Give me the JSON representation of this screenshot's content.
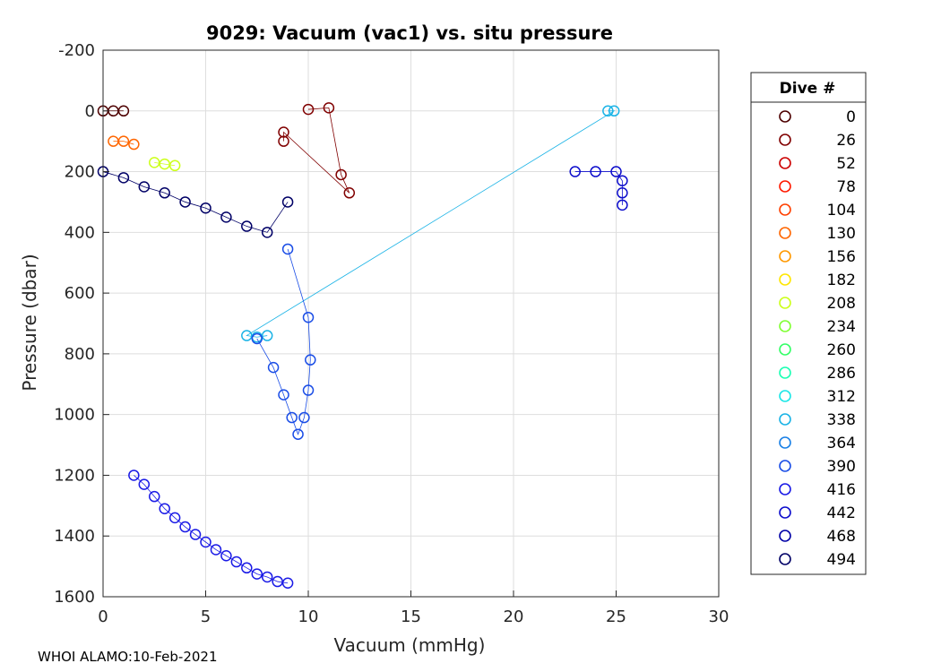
{
  "chart_data": {
    "type": "scatter",
    "title": "9029: Vacuum (vac1) vs. situ pressure",
    "xlabel": "Vacuum (mmHg)",
    "ylabel": "Pressure (dbar)",
    "xlim": [
      0,
      30
    ],
    "ylim": [
      -200,
      1600
    ],
    "y_reversed": true,
    "grid": true,
    "marker": "open-circle",
    "x_ticks": [
      "0",
      "5",
      "10",
      "15",
      "20",
      "25",
      "30"
    ],
    "y_ticks": [
      "-200",
      "0",
      "200",
      "400",
      "600",
      "800",
      "1000",
      "1200",
      "1400",
      "1600"
    ],
    "legend": {
      "title": "Dive #",
      "placement": "outside-right",
      "entries": [
        {
          "label": "0",
          "color": "#4d0000"
        },
        {
          "label": "26",
          "color": "#800000"
        },
        {
          "label": "52",
          "color": "#cc0000"
        },
        {
          "label": "78",
          "color": "#ff1a00"
        },
        {
          "label": "104",
          "color": "#ff4000"
        },
        {
          "label": "130",
          "color": "#ff6600"
        },
        {
          "label": "156",
          "color": "#ff9900"
        },
        {
          "label": "182",
          "color": "#ffe600"
        },
        {
          "label": "208",
          "color": "#ccff1a"
        },
        {
          "label": "234",
          "color": "#80ff33"
        },
        {
          "label": "260",
          "color": "#33ff66"
        },
        {
          "label": "286",
          "color": "#1affb3"
        },
        {
          "label": "312",
          "color": "#1ae6e6"
        },
        {
          "label": "338",
          "color": "#1ab3e6"
        },
        {
          "label": "364",
          "color": "#1a80e6"
        },
        {
          "label": "390",
          "color": "#1a4de6"
        },
        {
          "label": "416",
          "color": "#1a1ae6"
        },
        {
          "label": "442",
          "color": "#0d0dcc"
        },
        {
          "label": "468",
          "color": "#0000a6"
        },
        {
          "label": "494",
          "color": "#000066"
        }
      ]
    },
    "series": [
      {
        "color": "#4d0000",
        "points": [
          [
            0.0,
            0
          ],
          [
            0.5,
            0
          ],
          [
            1.0,
            0
          ]
        ]
      },
      {
        "color": "#800000",
        "points": [
          [
            10.0,
            -5
          ],
          [
            11.0,
            -10
          ],
          [
            11.6,
            210
          ],
          [
            12.0,
            270
          ],
          [
            8.8,
            70
          ],
          [
            8.8,
            100
          ]
        ]
      },
      {
        "color": "#ff6600",
        "points": [
          [
            0.5,
            100
          ],
          [
            1.0,
            100
          ],
          [
            1.5,
            110
          ]
        ]
      },
      {
        "color": "#ccff1a",
        "points": [
          [
            2.5,
            170
          ],
          [
            3.0,
            175
          ],
          [
            3.5,
            180
          ]
        ]
      },
      {
        "color": "#1ab3e6",
        "points": [
          [
            24.6,
            0
          ],
          [
            24.9,
            0
          ],
          [
            7.0,
            740
          ],
          [
            7.5,
            745
          ],
          [
            8.0,
            740
          ]
        ]
      },
      {
        "color": "#1a4de6",
        "points": [
          [
            9.0,
            455
          ],
          [
            10.0,
            680
          ],
          [
            10.1,
            820
          ],
          [
            10.0,
            920
          ],
          [
            9.8,
            1010
          ],
          [
            9.5,
            1065
          ],
          [
            9.2,
            1010
          ],
          [
            8.8,
            935
          ],
          [
            8.3,
            845
          ],
          [
            7.5,
            750
          ]
        ]
      },
      {
        "color": "#1a1ae6",
        "points": [
          [
            1.5,
            1200
          ],
          [
            2.0,
            1230
          ],
          [
            2.5,
            1270
          ],
          [
            3.0,
            1310
          ],
          [
            3.5,
            1340
          ],
          [
            4.0,
            1370
          ],
          [
            4.5,
            1395
          ],
          [
            5.0,
            1420
          ],
          [
            5.5,
            1445
          ],
          [
            6.0,
            1465
          ],
          [
            6.5,
            1485
          ],
          [
            7.0,
            1505
          ],
          [
            7.5,
            1525
          ],
          [
            8.0,
            1535
          ],
          [
            8.5,
            1550
          ],
          [
            9.0,
            1555
          ]
        ]
      },
      {
        "color": "#0d0dcc",
        "points": [
          [
            23.0,
            200
          ],
          [
            24.0,
            200
          ],
          [
            25.0,
            200
          ],
          [
            25.3,
            230
          ],
          [
            25.3,
            270
          ],
          [
            25.3,
            310
          ]
        ]
      },
      {
        "color": "#000066",
        "points": [
          [
            0.0,
            200
          ],
          [
            1.0,
            220
          ],
          [
            2.0,
            250
          ],
          [
            3.0,
            270
          ],
          [
            4.0,
            300
          ],
          [
            5.0,
            320
          ],
          [
            6.0,
            350
          ],
          [
            7.0,
            380
          ],
          [
            8.0,
            400
          ],
          [
            9.0,
            300
          ]
        ]
      }
    ]
  },
  "footer": {
    "text": "WHOI ALAMO:10-Feb-2021"
  }
}
